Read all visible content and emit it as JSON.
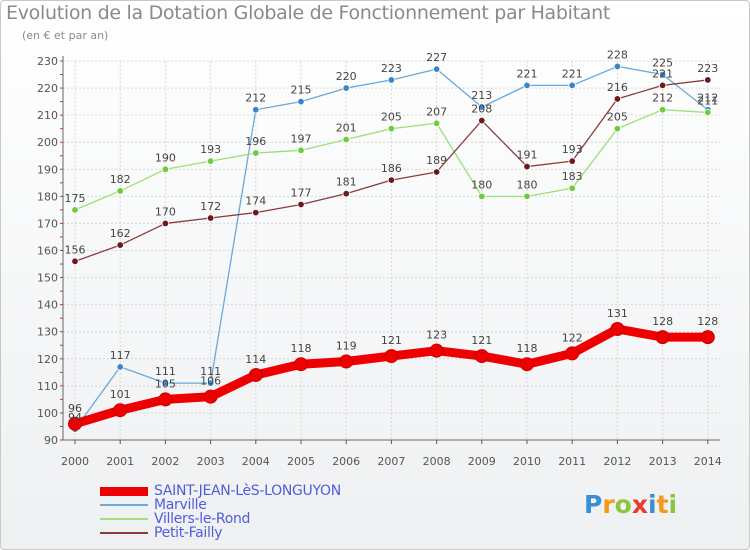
{
  "chart_data": {
    "type": "line",
    "title": "Evolution de la Dotation Globale de Fonctionnement par Habitant",
    "subtitle": "(en € et par an)",
    "xlabel": "",
    "ylabel": "",
    "categories": [
      "2000",
      "2001",
      "2002",
      "2003",
      "2004",
      "2005",
      "2006",
      "2007",
      "2008",
      "2009",
      "2010",
      "2011",
      "2012",
      "2013",
      "2014"
    ],
    "ylim": [
      90,
      230
    ],
    "yticks": [
      90,
      100,
      110,
      120,
      130,
      140,
      150,
      160,
      170,
      180,
      190,
      200,
      210,
      220,
      230
    ],
    "grid": true,
    "legend_position": "bottom-left",
    "series": [
      {
        "name": "SAINT-JEAN-LèS-LONGUYON",
        "color": "#ee0000",
        "point_color": "#ee0000",
        "values": [
          96,
          101,
          105,
          106,
          114,
          118,
          119,
          121,
          123,
          121,
          118,
          122,
          131,
          128,
          128
        ]
      },
      {
        "name": "Marville",
        "color": "#6aa8da",
        "point_color": "#3b86c8",
        "values": [
          94,
          117,
          111,
          111,
          212,
          215,
          220,
          223,
          227,
          213,
          221,
          221,
          228,
          225,
          212
        ]
      },
      {
        "name": "Villers-le-Rond",
        "color": "#9be07a",
        "point_color": "#6ccc3c",
        "values": [
          175,
          182,
          190,
          193,
          196,
          197,
          201,
          205,
          207,
          180,
          180,
          183,
          205,
          212,
          211
        ]
      },
      {
        "name": "Petit-Failly",
        "color": "#8c3b3b",
        "point_color": "#6a1a1a",
        "values": [
          156,
          162,
          170,
          172,
          174,
          177,
          181,
          186,
          189,
          208,
          191,
          193,
          216,
          221,
          223
        ]
      }
    ]
  },
  "logo": {
    "letters": [
      "P",
      "r",
      "o",
      "x",
      "i",
      "t",
      "i"
    ]
  }
}
